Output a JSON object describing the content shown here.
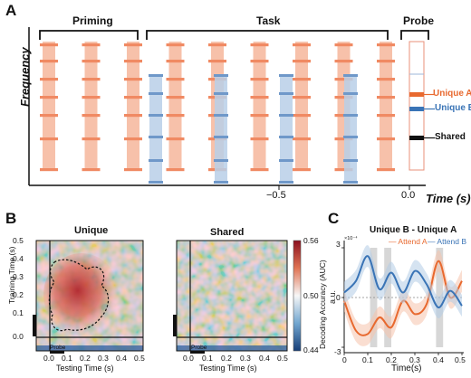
{
  "colors": {
    "orange": "#f08a63",
    "orange_light": "#f7c1aa",
    "orange_dark": "#e8692f",
    "blue": "#6f98c9",
    "blue_light": "#b9cfe8",
    "blue_dark": "#3a74b6",
    "black": "#111111",
    "shade": "#c9c9c9"
  },
  "panel_a": {
    "label": "A",
    "ylabel": "Frequency",
    "xlabel": "Time (s)",
    "periods": [
      "Priming",
      "Task",
      "Probe"
    ],
    "ticks": [
      "−0.5",
      "0.0"
    ],
    "probe_labels": [
      "Unique A",
      "Unique B",
      "Shared"
    ],
    "orange_bars": 9,
    "blue_bars": 4
  },
  "panel_b": {
    "label": "B",
    "titles": [
      "Unique",
      "Shared"
    ],
    "ylabel": "Training Time (s)",
    "xlabel": "Testing Time (s)",
    "x_ticks": [
      "0.0",
      "0.1",
      "0.2",
      "0.3",
      "0.4",
      "0.5"
    ],
    "y_ticks": [
      "0.5",
      "0.4",
      "0.3",
      "0.2",
      "0.1",
      "0.0"
    ],
    "probe_marker": "Probe",
    "colorbar_label": "Decoding Accuracy (AUC)",
    "colorbar_ticks": [
      "0.56",
      "0.50",
      "0.44"
    ],
    "colorbar_range": [
      0.44,
      0.56
    ]
  },
  "panel_c": {
    "label": "C",
    "title": "Unique B - Unique A",
    "exponent_top": "3",
    "exponent_note": "×10⁻⁴",
    "y_ticks": [
      "3",
      "0",
      "-3"
    ],
    "ylabel": "a.u.",
    "xlabel": "Time(s)",
    "x_ticks": [
      "0",
      "0.1",
      "0.2",
      "0.3",
      "0.4",
      "0.5"
    ],
    "legend": [
      "Attend A",
      "Attend B"
    ],
    "chart_data": {
      "type": "line",
      "x": [
        0,
        0.05,
        0.1,
        0.15,
        0.2,
        0.25,
        0.3,
        0.35,
        0.4,
        0.45,
        0.5
      ],
      "series": [
        {
          "name": "Attend A",
          "values": [
            -0.2,
            -2.0,
            -2.2,
            -1.2,
            -1.8,
            -0.2,
            -1.0,
            -0.4,
            2.2,
            0.0,
            1.0
          ]
        },
        {
          "name": "Attend B",
          "values": [
            0.3,
            1.0,
            2.5,
            0.5,
            1.5,
            0.3,
            1.6,
            0.8,
            -0.6,
            0.4,
            -0.5
          ]
        }
      ],
      "ylim": [
        -3,
        3
      ],
      "xlim": [
        0,
        0.5
      ],
      "shaded_x": [
        [
          0.11,
          0.14
        ],
        [
          0.17,
          0.2
        ],
        [
          0.39,
          0.42
        ]
      ]
    }
  }
}
